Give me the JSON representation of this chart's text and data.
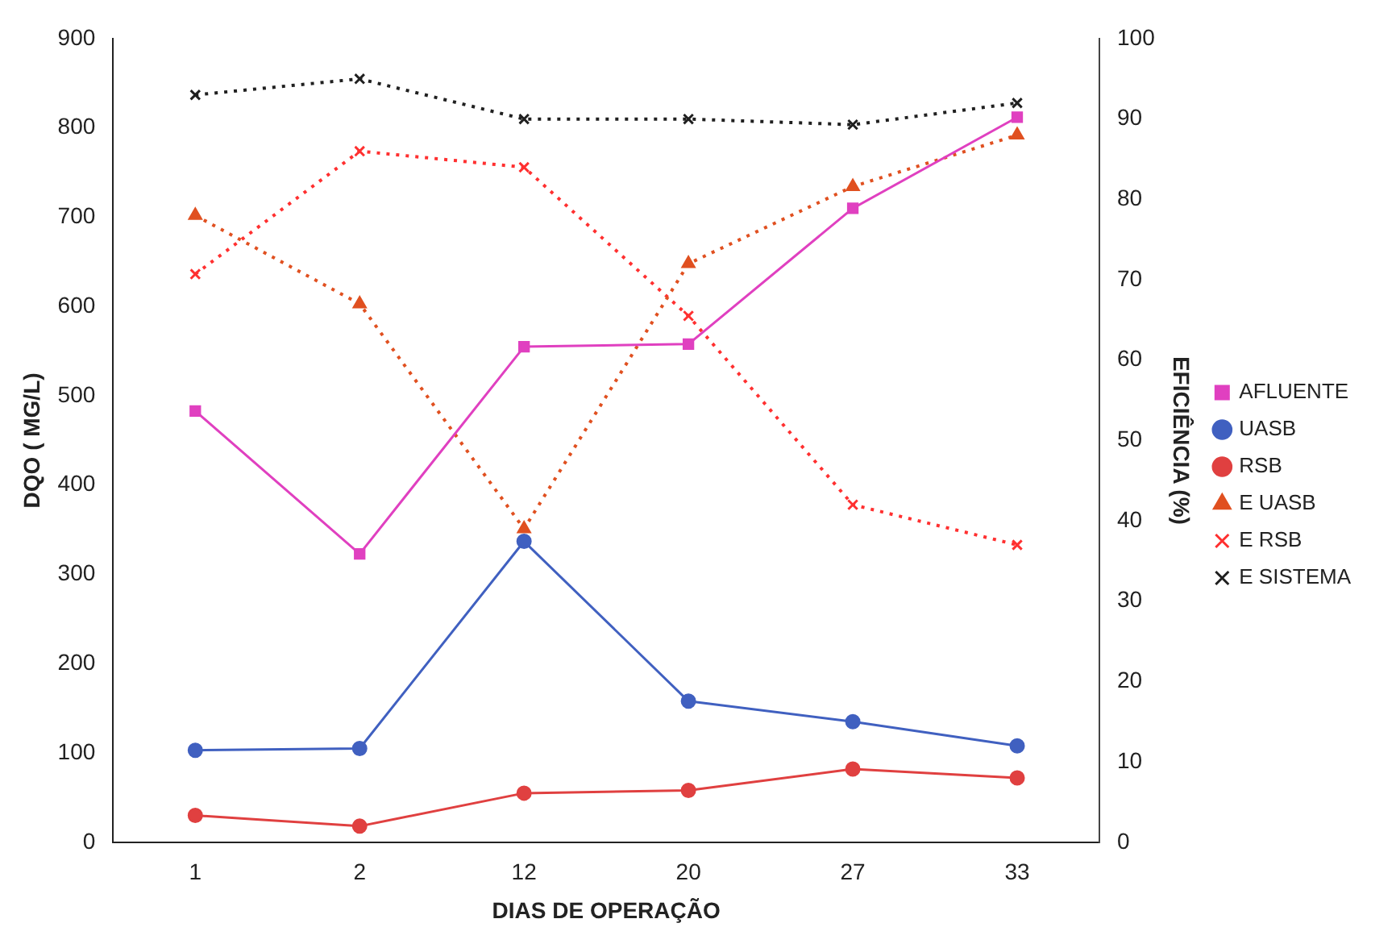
{
  "chart_data": {
    "type": "line",
    "xlabel": "DIAS DE OPERAÇÃO",
    "ylabel": "DQO ( MG/L)",
    "y2label": "EFICIÊNCIA (%)",
    "categories": [
      "1",
      "2",
      "12",
      "20",
      "27",
      "33"
    ],
    "ylim": [
      0,
      900
    ],
    "yticks": [
      0,
      100,
      200,
      300,
      400,
      500,
      600,
      700,
      800,
      900
    ],
    "y2lim": [
      0,
      100
    ],
    "y2ticks": [
      0,
      10,
      20,
      30,
      40,
      50,
      60,
      70,
      80,
      90,
      100
    ],
    "grid": false,
    "legend": "right",
    "series": [
      {
        "name": "AFLUENTE",
        "color": "#e040c0",
        "marker": "square",
        "line_style": "solid",
        "values": [
          483,
          323,
          555,
          558,
          710,
          812
        ]
      },
      {
        "name": "UASB",
        "color": "#4060c0",
        "marker": "circle",
        "line_style": "solid",
        "values": [
          103,
          105,
          337,
          158,
          135,
          108
        ]
      },
      {
        "name": "RSB",
        "color": "#e04040",
        "marker": "circle",
        "line_style": "solid",
        "values": [
          30,
          18,
          55,
          58,
          82,
          72
        ]
      },
      {
        "name": "E UASB",
        "color": "#e05020",
        "marker": "triangle",
        "line_style": "dotted",
        "axis": "y2",
        "values": [
          78,
          67,
          39,
          72,
          81.6,
          88
        ]
      },
      {
        "name": "E RSB",
        "color": "#ff3030",
        "marker": "cross",
        "line_style": "dotted",
        "axis": "y2",
        "values": [
          70.7,
          86,
          84,
          65.5,
          42,
          37
        ]
      },
      {
        "name": "E SISTEMA",
        "color": "#202020",
        "marker": "cross",
        "line_style": "dotted",
        "axis": "y2",
        "values": [
          93,
          95,
          90,
          90,
          89.3,
          92
        ]
      }
    ]
  }
}
